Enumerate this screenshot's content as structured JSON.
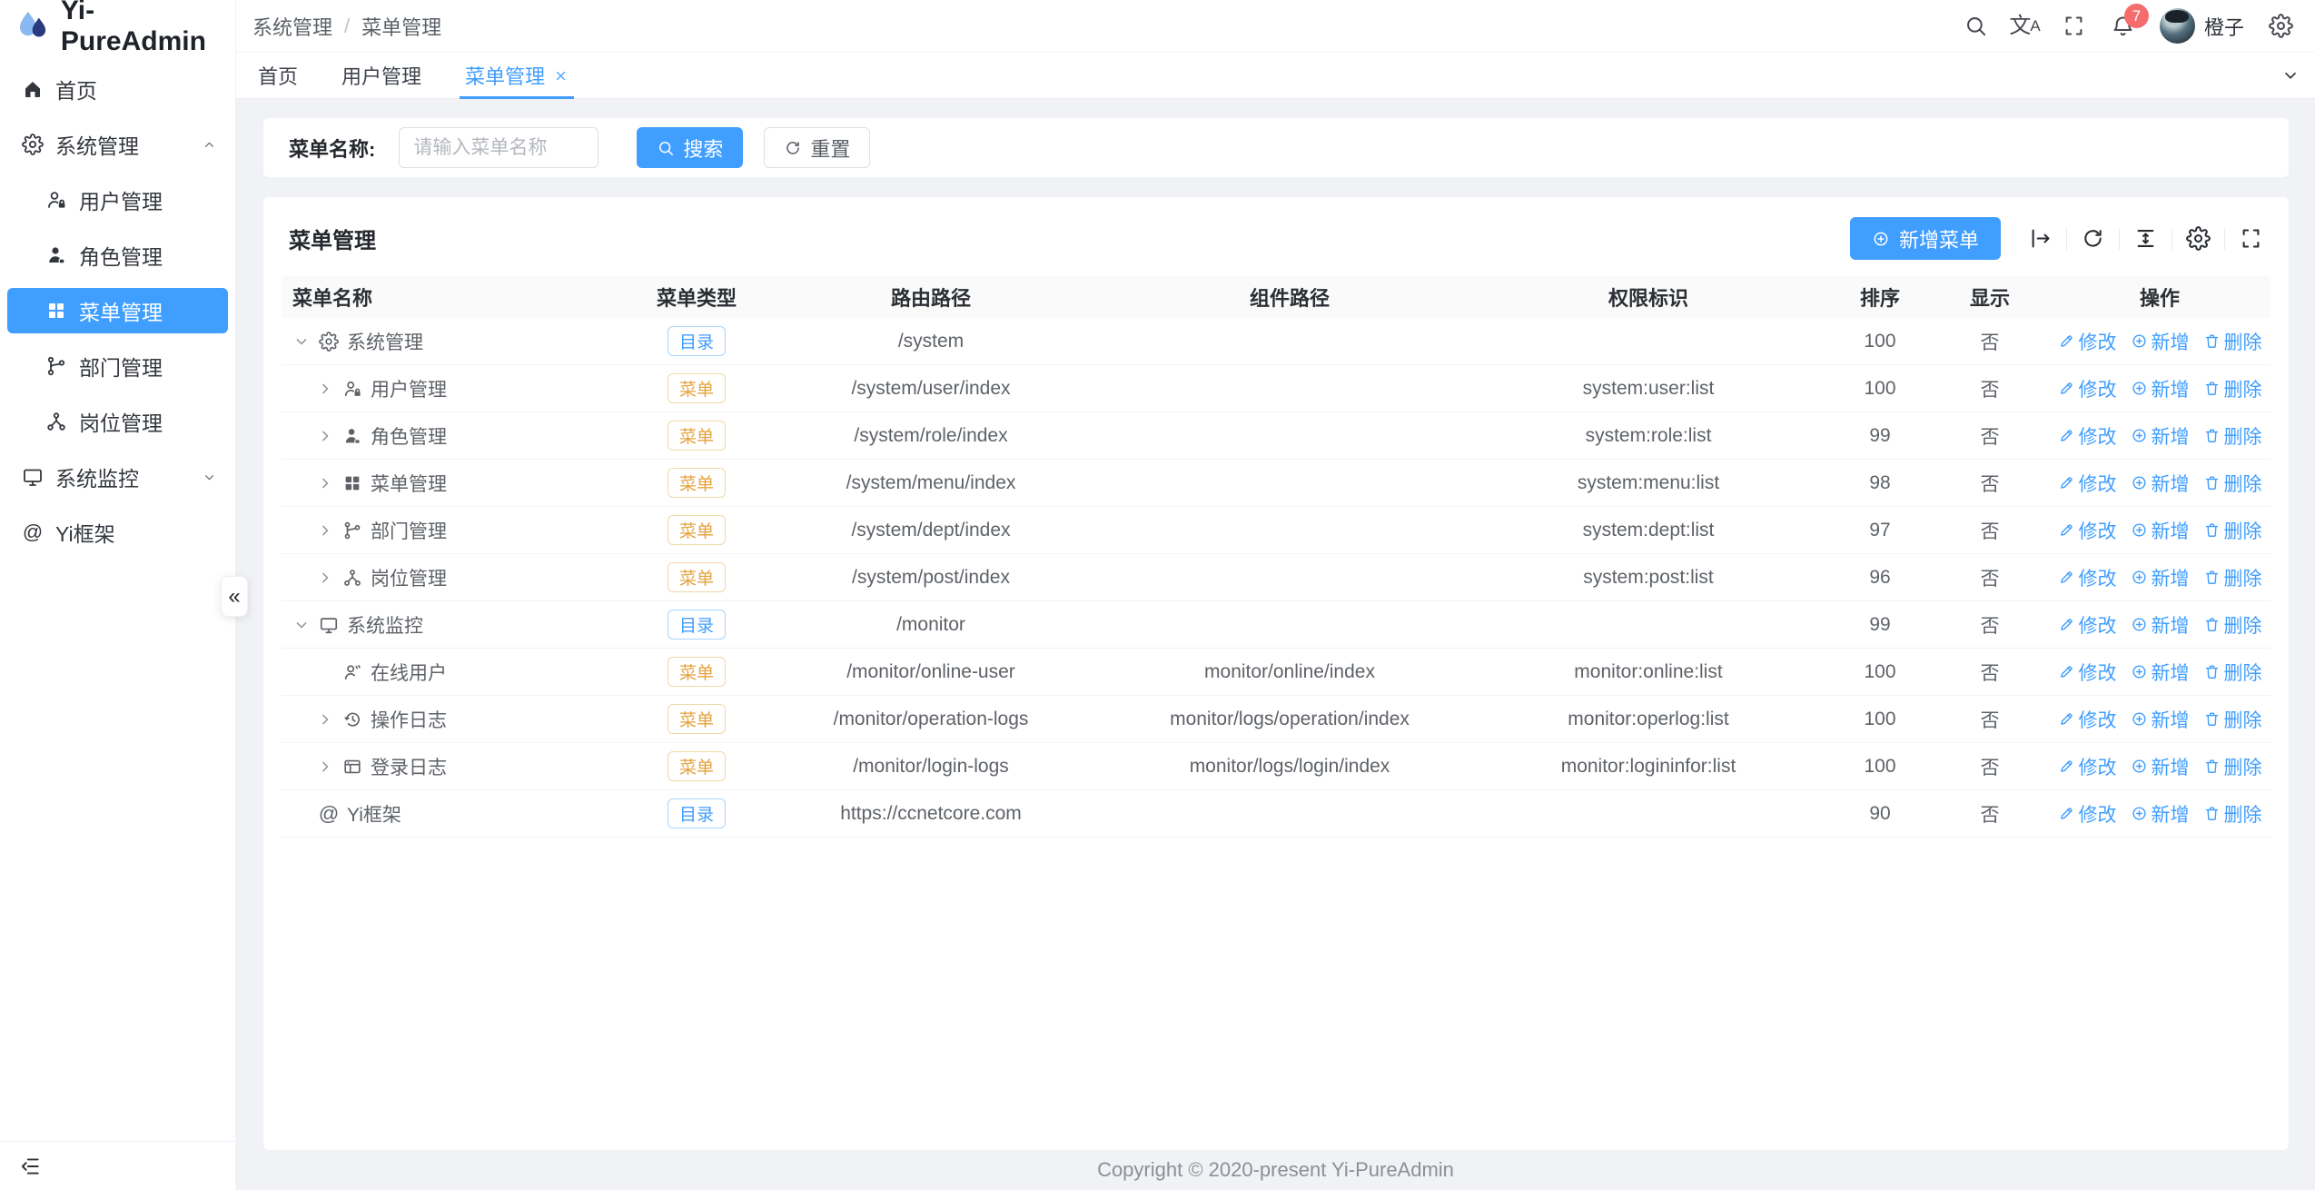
{
  "app": {
    "title": "Yi-PureAdmin",
    "logo_icon": "water-drop-icon"
  },
  "sidebar": {
    "items": [
      {
        "key": "home",
        "label": "首页",
        "icon": "home-icon",
        "level": 0
      },
      {
        "key": "system-management",
        "label": "系统管理",
        "icon": "gear-icon",
        "level": 0,
        "arrow": "up"
      },
      {
        "key": "user-management",
        "label": "用户管理",
        "icon": "user-lock-icon",
        "level": 1
      },
      {
        "key": "role-management",
        "label": "角色管理",
        "icon": "role-icon",
        "level": 1
      },
      {
        "key": "menu-management",
        "label": "菜单管理",
        "icon": "menu-grid-icon",
        "level": 1,
        "active": true
      },
      {
        "key": "dept-management",
        "label": "部门管理",
        "icon": "dept-icon",
        "level": 1
      },
      {
        "key": "post-management",
        "label": "岗位管理",
        "icon": "post-icon",
        "level": 1
      },
      {
        "key": "system-monitor",
        "label": "系统监控",
        "icon": "monitor-icon",
        "level": 0,
        "arrow": "down"
      },
      {
        "key": "yi-framework",
        "label": "Yi框架",
        "icon": "at-icon",
        "level": 0
      }
    ]
  },
  "header": {
    "breadcrumb": [
      "系统管理",
      "菜单管理"
    ],
    "separator": "/",
    "user_name": "橙子",
    "notification_count": "7"
  },
  "tabs": {
    "items": [
      {
        "label": "首页"
      },
      {
        "label": "用户管理"
      },
      {
        "label": "菜单管理",
        "active": true,
        "closable": true
      }
    ]
  },
  "search_panel": {
    "label": "菜单名称:",
    "placeholder": "请输入菜单名称",
    "input_value": "",
    "search_label": "搜索",
    "reset_label": "重置"
  },
  "card": {
    "title": "菜单管理",
    "add_button_label": "新增菜单"
  },
  "table": {
    "columns": [
      "菜单名称",
      "菜单类型",
      "路由路径",
      "组件路径",
      "权限标识",
      "排序",
      "显示",
      "操作"
    ],
    "tag_types": {
      "dir": "目录",
      "menu": "菜单"
    },
    "action_labels": {
      "edit": "修改",
      "add": "新增",
      "delete": "删除"
    },
    "rows": [
      {
        "name": "系统管理",
        "icon": "gear-icon",
        "level": 0,
        "chevron": "down",
        "tag": "dir",
        "route": "/system",
        "component": "",
        "perm": "",
        "sort": "100",
        "visible": "否"
      },
      {
        "name": "用户管理",
        "icon": "user-lock-icon",
        "level": 1,
        "chevron": "right",
        "tag": "menu",
        "route": "/system/user/index",
        "component": "",
        "perm": "system:user:list",
        "sort": "100",
        "visible": "否"
      },
      {
        "name": "角色管理",
        "icon": "role-icon",
        "level": 1,
        "chevron": "right",
        "tag": "menu",
        "route": "/system/role/index",
        "component": "",
        "perm": "system:role:list",
        "sort": "99",
        "visible": "否"
      },
      {
        "name": "菜单管理",
        "icon": "menu-grid-icon",
        "level": 1,
        "chevron": "right",
        "tag": "menu",
        "route": "/system/menu/index",
        "component": "",
        "perm": "system:menu:list",
        "sort": "98",
        "visible": "否"
      },
      {
        "name": "部门管理",
        "icon": "dept-icon",
        "level": 1,
        "chevron": "right",
        "tag": "menu",
        "route": "/system/dept/index",
        "component": "",
        "perm": "system:dept:list",
        "sort": "97",
        "visible": "否"
      },
      {
        "name": "岗位管理",
        "icon": "post-icon",
        "level": 1,
        "chevron": "right",
        "tag": "menu",
        "route": "/system/post/index",
        "component": "",
        "perm": "system:post:list",
        "sort": "96",
        "visible": "否"
      },
      {
        "name": "系统监控",
        "icon": "monitor-icon",
        "level": 0,
        "chevron": "down",
        "tag": "dir",
        "route": "/monitor",
        "component": "",
        "perm": "",
        "sort": "99",
        "visible": "否"
      },
      {
        "name": "在线用户",
        "icon": "online-user-icon",
        "level": 1,
        "chevron": "none",
        "tag": "menu",
        "route": "/monitor/online-user",
        "component": "monitor/online/index",
        "perm": "monitor:online:list",
        "sort": "100",
        "visible": "否"
      },
      {
        "name": "操作日志",
        "icon": "history-icon",
        "level": 1,
        "chevron": "right",
        "tag": "menu",
        "route": "/monitor/operation-logs",
        "component": "monitor/logs/operation/index",
        "perm": "monitor:operlog:list",
        "sort": "100",
        "visible": "否"
      },
      {
        "name": "登录日志",
        "icon": "login-log-icon",
        "level": 1,
        "chevron": "right",
        "tag": "menu",
        "route": "/monitor/login-logs",
        "component": "monitor/logs/login/index",
        "perm": "monitor:logininfor:list",
        "sort": "100",
        "visible": "否"
      },
      {
        "name": "Yi框架",
        "icon": "at-icon",
        "level": 0,
        "chevron": "none",
        "tag": "dir",
        "route": "https://ccnetcore.com",
        "component": "",
        "perm": "",
        "sort": "90",
        "visible": "否"
      }
    ]
  },
  "footer": {
    "copyright": "Copyright © 2020-present Yi-PureAdmin"
  },
  "colors": {
    "primary": "#409eff",
    "warning": "#e6a23c",
    "badge": "#f56c6c",
    "content_bg": "#f0f2f5"
  }
}
